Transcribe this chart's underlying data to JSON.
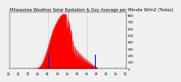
{
  "title": "Milwaukee Weather Solar Radiation & Day Average per Minute W/m2 (Today)",
  "background_color": "#f0f0f0",
  "fill_color": "#ff0000",
  "line_color": "#cc0000",
  "blue_line_color": "#0000cc",
  "grid_color": "#999999",
  "ylim": [
    0,
    850
  ],
  "xlim": [
    0,
    1440
  ],
  "sunrise_x": 330,
  "sunset_x": 1100,
  "blue_line1_x": 480,
  "blue_line2_x": 1060,
  "peak_x": 660,
  "dotted_vline_x": 730,
  "dashed_vlines": [
    480,
    720,
    960
  ],
  "yticks": [
    0,
    100,
    200,
    300,
    400,
    500,
    600,
    700,
    800
  ],
  "title_fontsize": 3.8,
  "tick_fontsize": 2.8,
  "solar_data_x": [
    0,
    300,
    330,
    360,
    390,
    420,
    450,
    480,
    510,
    540,
    570,
    600,
    630,
    660,
    700,
    730,
    760,
    790,
    820,
    850,
    880,
    910,
    940,
    970,
    1000,
    1030,
    1060,
    1090,
    1100,
    1440
  ],
  "solar_data_y": [
    0,
    0,
    2,
    15,
    55,
    130,
    230,
    350,
    480,
    590,
    670,
    740,
    790,
    820,
    810,
    780,
    600,
    380,
    300,
    260,
    220,
    180,
    150,
    120,
    90,
    60,
    30,
    5,
    0,
    0
  ]
}
